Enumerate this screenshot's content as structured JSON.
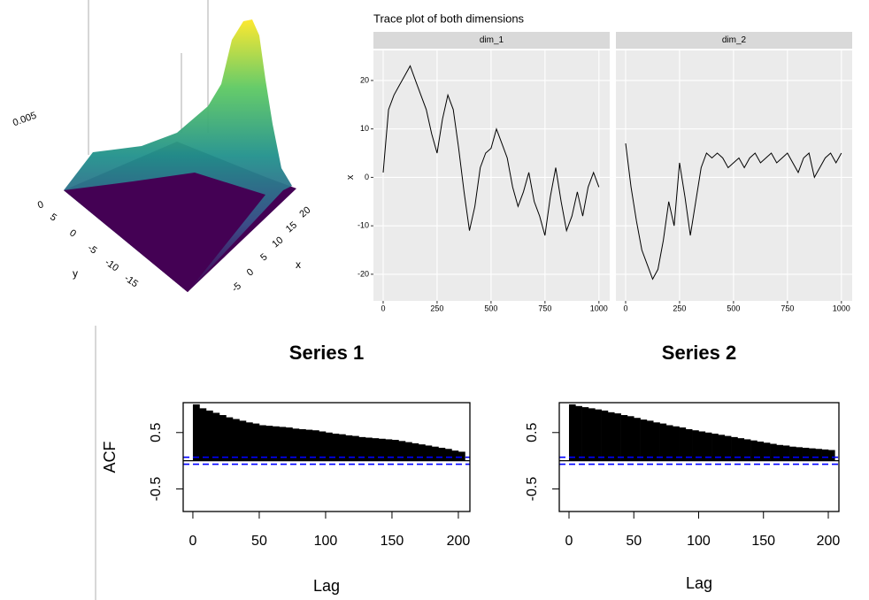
{
  "chart_data": [
    {
      "type": "surface",
      "x_label": "x",
      "y_label": "y",
      "xticks": [
        20,
        15,
        10,
        5,
        0,
        -5
      ],
      "yticks": [
        5,
        0,
        -5,
        -10,
        -15
      ],
      "zticks": [
        0,
        0.005
      ],
      "colors": [
        "#440154",
        "#3b528b",
        "#21918c",
        "#5ec962",
        "#fde725"
      ]
    },
    {
      "type": "line",
      "title": "Trace plot of both dimensions",
      "y_label": "x",
      "grid": true,
      "x": [
        0,
        25,
        50,
        75,
        100,
        125,
        150,
        175,
        200,
        225,
        250,
        275,
        300,
        325,
        350,
        375,
        400,
        425,
        450,
        475,
        500,
        525,
        550,
        575,
        600,
        625,
        650,
        675,
        700,
        725,
        750,
        775,
        800,
        825,
        850,
        875,
        900,
        925,
        950,
        975,
        1000
      ],
      "series": [
        {
          "name": "dim_1",
          "color": "#000000",
          "values": [
            1,
            14,
            17,
            19,
            21,
            23,
            20,
            17,
            14,
            9,
            5,
            12,
            17,
            14,
            6,
            -3,
            -11,
            -6,
            2,
            5,
            6,
            10,
            7,
            4,
            -2,
            -6,
            -3,
            1,
            -5,
            -8,
            -12,
            -4,
            2,
            -5,
            -11,
            -8,
            -3,
            -8,
            -2,
            1,
            -2
          ]
        },
        {
          "name": "dim_2",
          "color": "#000000",
          "values": [
            7,
            -2,
            -9,
            -15,
            -18,
            -21,
            -19,
            -13,
            -5,
            -10,
            3,
            -4,
            -12,
            -5,
            2,
            5,
            4,
            5,
            4,
            2,
            3,
            4,
            2,
            4,
            5,
            3,
            4,
            5,
            3,
            4,
            5,
            3,
            1,
            4,
            5,
            0,
            2,
            4,
            5,
            3,
            5
          ]
        }
      ],
      "xlim": [
        -45,
        1050
      ],
      "xticks": [
        0,
        250,
        500,
        750,
        1000
      ],
      "ylim": [
        -25.5,
        26.2
      ],
      "yticks": [
        -20,
        -10,
        0,
        10,
        20
      ]
    },
    {
      "type": "acf",
      "title": "Series 1",
      "x_label": "Lag",
      "y_label": "ACF",
      "color": "#000000",
      "x": [
        0,
        5,
        10,
        15,
        20,
        25,
        30,
        35,
        40,
        45,
        50,
        55,
        60,
        65,
        70,
        75,
        80,
        85,
        90,
        95,
        100,
        105,
        110,
        115,
        120,
        125,
        130,
        135,
        140,
        145,
        150,
        155,
        160,
        165,
        170,
        175,
        180,
        185,
        190,
        195,
        200
      ],
      "values": [
        1,
        0.93,
        0.89,
        0.85,
        0.81,
        0.77,
        0.74,
        0.71,
        0.68,
        0.66,
        0.63,
        0.62,
        0.61,
        0.6,
        0.59,
        0.57,
        0.56,
        0.55,
        0.54,
        0.52,
        0.5,
        0.48,
        0.47,
        0.45,
        0.44,
        0.42,
        0.41,
        0.4,
        0.39,
        0.38,
        0.37,
        0.35,
        0.33,
        0.31,
        0.29,
        0.27,
        0.25,
        0.23,
        0.21,
        0.18,
        0.16
      ],
      "ci_lines": [
        0.062,
        -0.062
      ],
      "ci_color": "#0000ff",
      "xlim": [
        -7.3,
        208.7
      ],
      "xticks": [
        0,
        50,
        100,
        150,
        200
      ],
      "ylim": [
        -0.9,
        1.03
      ],
      "yticks": [
        -0.5,
        0.5
      ]
    },
    {
      "type": "acf",
      "title": "Series 2",
      "x_label": "Lag",
      "color": "#000000",
      "x": [
        0,
        5,
        10,
        15,
        20,
        25,
        30,
        35,
        40,
        45,
        50,
        55,
        60,
        65,
        70,
        75,
        80,
        85,
        90,
        95,
        100,
        105,
        110,
        115,
        120,
        125,
        130,
        135,
        140,
        145,
        150,
        155,
        160,
        165,
        170,
        175,
        180,
        185,
        190,
        195,
        200
      ],
      "values": [
        1,
        0.97,
        0.95,
        0.93,
        0.91,
        0.89,
        0.86,
        0.84,
        0.81,
        0.79,
        0.76,
        0.73,
        0.71,
        0.68,
        0.66,
        0.63,
        0.61,
        0.59,
        0.56,
        0.54,
        0.52,
        0.5,
        0.48,
        0.46,
        0.44,
        0.42,
        0.4,
        0.38,
        0.36,
        0.34,
        0.32,
        0.3,
        0.28,
        0.27,
        0.25,
        0.24,
        0.23,
        0.22,
        0.21,
        0.2,
        0.19
      ],
      "ci_lines": [
        0.062,
        -0.062
      ],
      "ci_color": "#0000ff",
      "xlim": [
        -7.5,
        208.2
      ],
      "xticks": [
        0,
        50,
        100,
        150,
        200
      ],
      "ylim": [
        -0.9,
        1.03
      ],
      "yticks": [
        -0.5,
        0.5
      ]
    }
  ]
}
